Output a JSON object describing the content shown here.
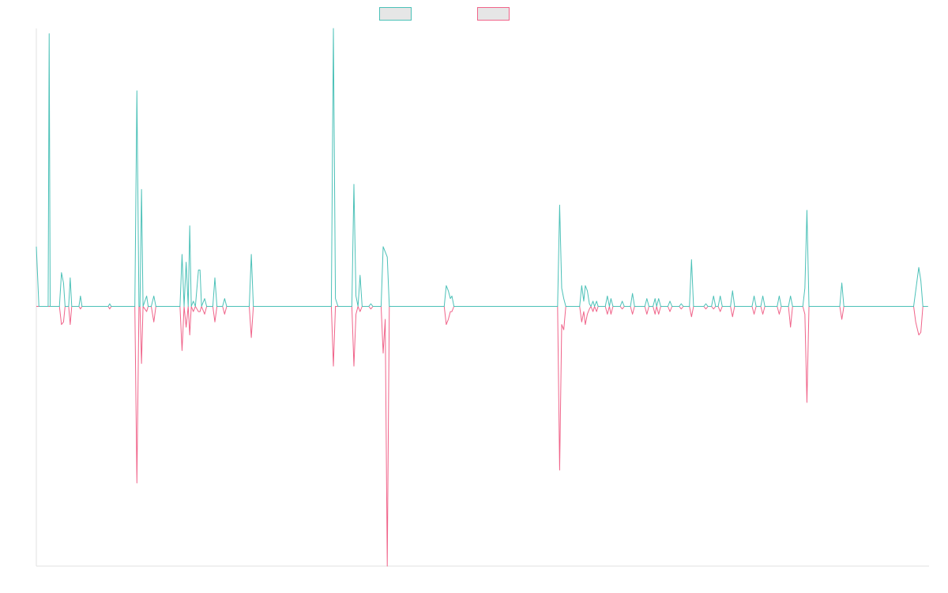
{
  "colors": {
    "series_a": "#4cc1b8",
    "series_b": "#f0648a",
    "legend_fill": "#e6e6e6",
    "axis": "#e0e0e0"
  },
  "chart_data": {
    "type": "line",
    "title": "",
    "xlabel": "",
    "ylabel": "",
    "grid": false,
    "legend_position": "top-center",
    "ylim": [
      -100,
      107
    ],
    "series": [
      {
        "legend_label": "",
        "color": "#4cc1b8",
        "points": [
          [
            0,
            23
          ],
          [
            0.5,
            0
          ],
          [
            2.3,
            0
          ],
          [
            2.5,
            105
          ],
          [
            2.7,
            0
          ],
          [
            4.5,
            0
          ],
          [
            4.9,
            13
          ],
          [
            5.3,
            9
          ],
          [
            5.6,
            0
          ],
          [
            6.3,
            0
          ],
          [
            6.6,
            11
          ],
          [
            6.9,
            0
          ],
          [
            8.3,
            0
          ],
          [
            8.6,
            4
          ],
          [
            8.9,
            0
          ],
          [
            14,
            0
          ],
          [
            14.3,
            1
          ],
          [
            14.6,
            0
          ],
          [
            19.2,
            0
          ],
          [
            19.6,
            83
          ],
          [
            20,
            0
          ],
          [
            20.2,
            0
          ],
          [
            20.5,
            45
          ],
          [
            20.8,
            0
          ],
          [
            21.5,
            4
          ],
          [
            21.8,
            0
          ],
          [
            22.4,
            0
          ],
          [
            22.9,
            4
          ],
          [
            23.3,
            0
          ],
          [
            28,
            0
          ],
          [
            28.4,
            20
          ],
          [
            28.8,
            0
          ],
          [
            29.2,
            17
          ],
          [
            29.6,
            0
          ],
          [
            29.9,
            31
          ],
          [
            30.2,
            0
          ],
          [
            30.6,
            2
          ],
          [
            31,
            0
          ],
          [
            31.6,
            14
          ],
          [
            31.9,
            14
          ],
          [
            32.2,
            0
          ],
          [
            32.8,
            3
          ],
          [
            33.2,
            0
          ],
          [
            34.4,
            0
          ],
          [
            34.8,
            11
          ],
          [
            35.2,
            0
          ],
          [
            36.3,
            0
          ],
          [
            36.7,
            3
          ],
          [
            37.1,
            0
          ],
          [
            41.5,
            0
          ],
          [
            41.9,
            20
          ],
          [
            42.3,
            0
          ],
          [
            57.5,
            0
          ],
          [
            57.9,
            107
          ],
          [
            58.3,
            3
          ],
          [
            58.8,
            0
          ],
          [
            61.5,
            0
          ],
          [
            61.9,
            47
          ],
          [
            62.3,
            4
          ],
          [
            62.7,
            0
          ],
          [
            63.1,
            12
          ],
          [
            63.5,
            0
          ],
          [
            64.8,
            0
          ],
          [
            65.2,
            1
          ],
          [
            65.6,
            0
          ],
          [
            67.2,
            0
          ],
          [
            67.6,
            23
          ],
          [
            68.4,
            19
          ],
          [
            68.8,
            0
          ],
          [
            79.5,
            0
          ],
          [
            79.9,
            8
          ],
          [
            80.3,
            6
          ],
          [
            80.7,
            3
          ],
          [
            81,
            4
          ],
          [
            81.4,
            0
          ],
          [
            101.6,
            0
          ],
          [
            102,
            39
          ],
          [
            102.4,
            7
          ],
          [
            102.8,
            3
          ],
          [
            103.2,
            0
          ],
          [
            105.9,
            0
          ],
          [
            106.3,
            8
          ],
          [
            106.7,
            2
          ],
          [
            107,
            8
          ],
          [
            107.4,
            6
          ],
          [
            107.8,
            1
          ],
          [
            108.1,
            0
          ],
          [
            108.5,
            2
          ],
          [
            108.8,
            0
          ],
          [
            109.2,
            2
          ],
          [
            109.5,
            0
          ],
          [
            110.9,
            0
          ],
          [
            111.3,
            4
          ],
          [
            111.7,
            0
          ],
          [
            112,
            3
          ],
          [
            112.4,
            0
          ],
          [
            113.8,
            0
          ],
          [
            114.2,
            2
          ],
          [
            114.6,
            0
          ],
          [
            115.8,
            0
          ],
          [
            116.2,
            5
          ],
          [
            116.6,
            0
          ],
          [
            118.6,
            0
          ],
          [
            119,
            3
          ],
          [
            119.4,
            0
          ],
          [
            120.2,
            0
          ],
          [
            120.6,
            3
          ],
          [
            120.9,
            0
          ],
          [
            121.3,
            3
          ],
          [
            121.7,
            0
          ],
          [
            123.1,
            0
          ],
          [
            123.5,
            2
          ],
          [
            123.9,
            0
          ],
          [
            125.3,
            0
          ],
          [
            125.7,
            1
          ],
          [
            126.1,
            0
          ],
          [
            127.3,
            0
          ],
          [
            127.7,
            18
          ],
          [
            128.1,
            0
          ],
          [
            130.1,
            0
          ],
          [
            130.5,
            1
          ],
          [
            130.9,
            0
          ],
          [
            131.6,
            0
          ],
          [
            132,
            4
          ],
          [
            132.4,
            0
          ],
          [
            132.9,
            0
          ],
          [
            133.3,
            4
          ],
          [
            133.7,
            0
          ],
          [
            135.3,
            0
          ],
          [
            135.7,
            6
          ],
          [
            136.1,
            0
          ],
          [
            139.5,
            0
          ],
          [
            139.9,
            4
          ],
          [
            140.3,
            0
          ],
          [
            141.2,
            0
          ],
          [
            141.6,
            4
          ],
          [
            142,
            0
          ],
          [
            144.4,
            0
          ],
          [
            144.8,
            4
          ],
          [
            145.2,
            0
          ],
          [
            146.6,
            0
          ],
          [
            147,
            4
          ],
          [
            147.4,
            0
          ],
          [
            149.4,
            0
          ],
          [
            149.8,
            7
          ],
          [
            150.2,
            37
          ],
          [
            150.6,
            0
          ],
          [
            156.6,
            0
          ],
          [
            157,
            9
          ],
          [
            157.4,
            0
          ],
          [
            171,
            0
          ],
          [
            171.4,
            6
          ],
          [
            172,
            15
          ],
          [
            172.4,
            10
          ],
          [
            172.8,
            0
          ],
          [
            173.8,
            0
          ]
        ]
      },
      {
        "legend_label": "",
        "color": "#f0648a",
        "points": [
          [
            0,
            0
          ],
          [
            4.5,
            0
          ],
          [
            4.9,
            -7
          ],
          [
            5.3,
            -6
          ],
          [
            5.6,
            0
          ],
          [
            6.3,
            0
          ],
          [
            6.6,
            -7
          ],
          [
            6.9,
            0
          ],
          [
            8.3,
            0
          ],
          [
            8.6,
            -1
          ],
          [
            8.9,
            0
          ],
          [
            14,
            0
          ],
          [
            14.3,
            -1
          ],
          [
            14.6,
            0
          ],
          [
            19.2,
            0
          ],
          [
            19.6,
            -68
          ],
          [
            20,
            0
          ],
          [
            20.2,
            0
          ],
          [
            20.5,
            -22
          ],
          [
            20.8,
            0
          ],
          [
            21.5,
            -2
          ],
          [
            21.8,
            0
          ],
          [
            22.4,
            0
          ],
          [
            22.9,
            -6
          ],
          [
            23.3,
            0
          ],
          [
            28,
            0
          ],
          [
            28.4,
            -17
          ],
          [
            28.8,
            0
          ],
          [
            29.2,
            -8
          ],
          [
            29.6,
            0
          ],
          [
            29.9,
            -11
          ],
          [
            30.2,
            0
          ],
          [
            30.6,
            -2
          ],
          [
            31,
            0
          ],
          [
            31.6,
            -2
          ],
          [
            31.9,
            -2
          ],
          [
            32.2,
            0
          ],
          [
            32.8,
            -3
          ],
          [
            33.2,
            0
          ],
          [
            34.4,
            0
          ],
          [
            34.8,
            -6
          ],
          [
            35.2,
            0
          ],
          [
            36.3,
            0
          ],
          [
            36.7,
            -3
          ],
          [
            37.1,
            0
          ],
          [
            41.5,
            0
          ],
          [
            41.9,
            -12
          ],
          [
            42.3,
            0
          ],
          [
            57.5,
            0
          ],
          [
            57.9,
            -23
          ],
          [
            58.3,
            0
          ],
          [
            61.5,
            0
          ],
          [
            61.9,
            -23
          ],
          [
            62.3,
            -3
          ],
          [
            62.7,
            0
          ],
          [
            63.1,
            -2
          ],
          [
            63.5,
            0
          ],
          [
            64.8,
            0
          ],
          [
            65.2,
            -1
          ],
          [
            65.6,
            0
          ],
          [
            67.2,
            0
          ],
          [
            67.6,
            -18
          ],
          [
            68,
            -5
          ],
          [
            68.4,
            -100
          ],
          [
            68.8,
            0
          ],
          [
            79.5,
            0
          ],
          [
            79.9,
            -7
          ],
          [
            80.3,
            -5
          ],
          [
            80.7,
            -2
          ],
          [
            81,
            -2
          ],
          [
            81.4,
            0
          ],
          [
            101.6,
            0
          ],
          [
            102,
            -63
          ],
          [
            102.4,
            -7
          ],
          [
            102.8,
            -9
          ],
          [
            103.2,
            0
          ],
          [
            105.9,
            0
          ],
          [
            106.3,
            -6
          ],
          [
            106.7,
            -2
          ],
          [
            107,
            -7
          ],
          [
            107.4,
            -3
          ],
          [
            107.8,
            -1
          ],
          [
            108.1,
            0
          ],
          [
            108.5,
            -2
          ],
          [
            108.8,
            0
          ],
          [
            109.2,
            -2
          ],
          [
            109.5,
            0
          ],
          [
            110.9,
            0
          ],
          [
            111.3,
            -3
          ],
          [
            111.7,
            0
          ],
          [
            112,
            -3
          ],
          [
            112.4,
            0
          ],
          [
            113.8,
            0
          ],
          [
            114.2,
            -1
          ],
          [
            114.6,
            0
          ],
          [
            115.8,
            0
          ],
          [
            116.2,
            -3
          ],
          [
            116.6,
            0
          ],
          [
            118.6,
            0
          ],
          [
            119,
            -3
          ],
          [
            119.4,
            0
          ],
          [
            120.2,
            0
          ],
          [
            120.6,
            -3
          ],
          [
            120.9,
            0
          ],
          [
            121.3,
            -3
          ],
          [
            121.7,
            0
          ],
          [
            123.1,
            0
          ],
          [
            123.5,
            -2
          ],
          [
            123.9,
            0
          ],
          [
            125.3,
            0
          ],
          [
            125.7,
            -1
          ],
          [
            126.1,
            0
          ],
          [
            127.3,
            0
          ],
          [
            127.7,
            -4
          ],
          [
            128.1,
            0
          ],
          [
            130.1,
            0
          ],
          [
            130.5,
            -1
          ],
          [
            130.9,
            0
          ],
          [
            131.6,
            0
          ],
          [
            132,
            -1
          ],
          [
            132.4,
            0
          ],
          [
            132.9,
            0
          ],
          [
            133.3,
            -2
          ],
          [
            133.7,
            0
          ],
          [
            135.3,
            0
          ],
          [
            135.7,
            -4
          ],
          [
            136.1,
            0
          ],
          [
            139.5,
            0
          ],
          [
            139.9,
            -3
          ],
          [
            140.3,
            0
          ],
          [
            141.2,
            0
          ],
          [
            141.6,
            -3
          ],
          [
            142,
            0
          ],
          [
            144.4,
            0
          ],
          [
            144.8,
            -3
          ],
          [
            145.2,
            0
          ],
          [
            146.6,
            0
          ],
          [
            147,
            -8
          ],
          [
            147.4,
            0
          ],
          [
            149.4,
            0
          ],
          [
            149.8,
            -3
          ],
          [
            150.2,
            -37
          ],
          [
            150.6,
            0
          ],
          [
            156.6,
            0
          ],
          [
            157,
            -5
          ],
          [
            157.4,
            0
          ],
          [
            171,
            0
          ],
          [
            171.4,
            -6
          ],
          [
            172,
            -11
          ],
          [
            172.4,
            -10
          ],
          [
            172.8,
            0
          ],
          [
            173.8,
            0
          ]
        ]
      }
    ],
    "xlim": [
      0,
      174
    ]
  }
}
